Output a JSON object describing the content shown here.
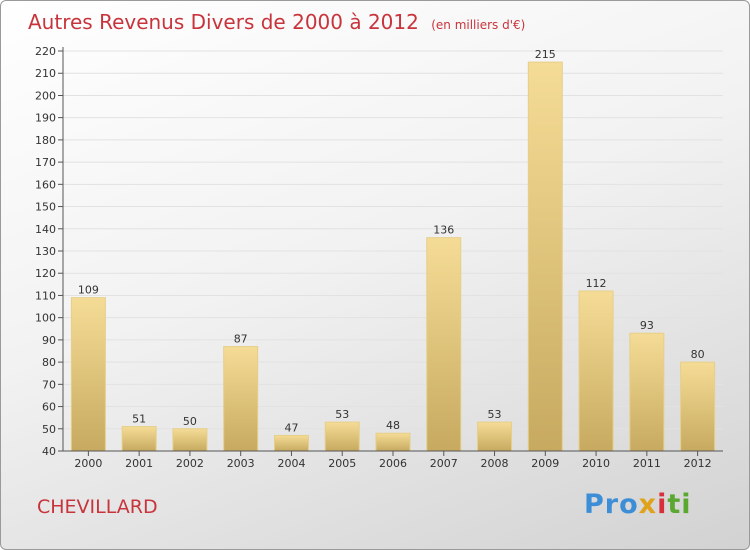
{
  "chart_data": {
    "type": "bar",
    "title": "Autres Revenus Divers de 2000 à 2012",
    "subtitle": "(en milliers d'€)",
    "categories": [
      "2000",
      "2001",
      "2002",
      "2003",
      "2004",
      "2005",
      "2006",
      "2007",
      "2008",
      "2009",
      "2010",
      "2011",
      "2012"
    ],
    "values": [
      109,
      51,
      50,
      87,
      47,
      53,
      48,
      136,
      53,
      215,
      112,
      93,
      80
    ],
    "ylim": [
      40,
      220
    ],
    "ytick_step": 10,
    "grid": true,
    "bar_color_light": "#f5dc96",
    "bar_color_dark": "#c7aa60"
  },
  "commune": "CHEVILLARD",
  "logo": {
    "p1": "Pro",
    "p2": "x",
    "p3": "i",
    "p4": "ti"
  }
}
